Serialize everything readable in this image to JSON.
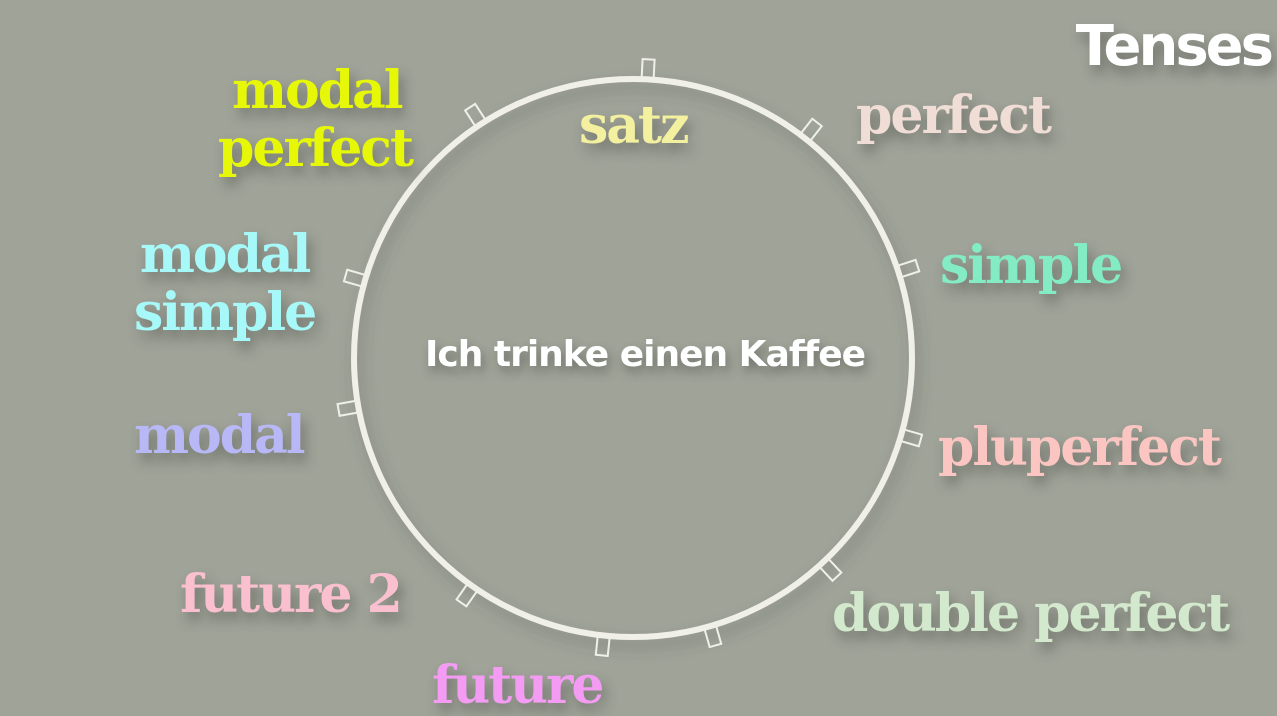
{
  "title": "Tenses",
  "center_sentence": "Ich trinke einen Kaffee",
  "colors": {
    "background": "#9fa398",
    "ring": "#f0f0e8",
    "title": "#ffffff"
  },
  "labels": {
    "satz": "satz",
    "perfect": "perfect",
    "simple": "simple",
    "pluperfect": "pluperfect",
    "double_perfect": "double perfect",
    "future": "future",
    "future_2": "future 2",
    "modal": "modal",
    "modal_simple": [
      "modal",
      "simple"
    ],
    "modal_perfect": [
      "modal",
      "perfect"
    ]
  },
  "label_colors": {
    "satz": "#f3f0a0",
    "perfect": "#f0ddd6",
    "simple": "#83ecc4",
    "pluperfect": "#fbc6c2",
    "double_perfect": "#d3e9cd",
    "future": "#f49cf4",
    "future_2": "#fbc0cf",
    "modal": "#b8b8f6",
    "modal_simple": "#a7f8f8",
    "modal_perfect": "#e6f707"
  }
}
